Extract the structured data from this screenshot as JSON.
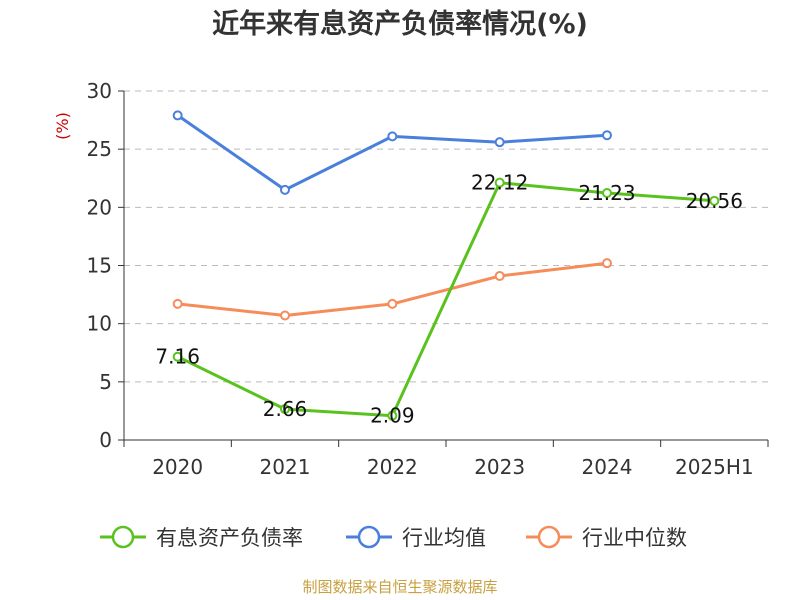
{
  "chart_data": {
    "type": "line",
    "title": "近年来有息资产负债率情况(%)",
    "y_unit": "(%)",
    "categories": [
      "2020",
      "2021",
      "2022",
      "2023",
      "2024",
      "2025H1"
    ],
    "ylim": [
      0,
      30
    ],
    "yticks": [
      0,
      5,
      10,
      15,
      20,
      25,
      30
    ],
    "grid": true,
    "legend_position": "bottom",
    "series": [
      {
        "name": "有息资产负债率",
        "color": "#5ac21e",
        "values": [
          7.16,
          2.66,
          2.09,
          22.12,
          21.23,
          20.56
        ],
        "labels": [
          "7.16",
          "2.66",
          "2.09",
          "22.12",
          "21.23",
          "20.56"
        ]
      },
      {
        "name": "行业均值",
        "color": "#4a7fdc",
        "values": [
          27.9,
          21.5,
          26.1,
          25.6,
          26.2,
          null
        ]
      },
      {
        "name": "行业中位数",
        "color": "#f58c5a",
        "values": [
          11.7,
          10.7,
          11.7,
          14.1,
          15.2,
          null
        ]
      }
    ],
    "source": "制图数据来自恒生聚源数据库"
  }
}
